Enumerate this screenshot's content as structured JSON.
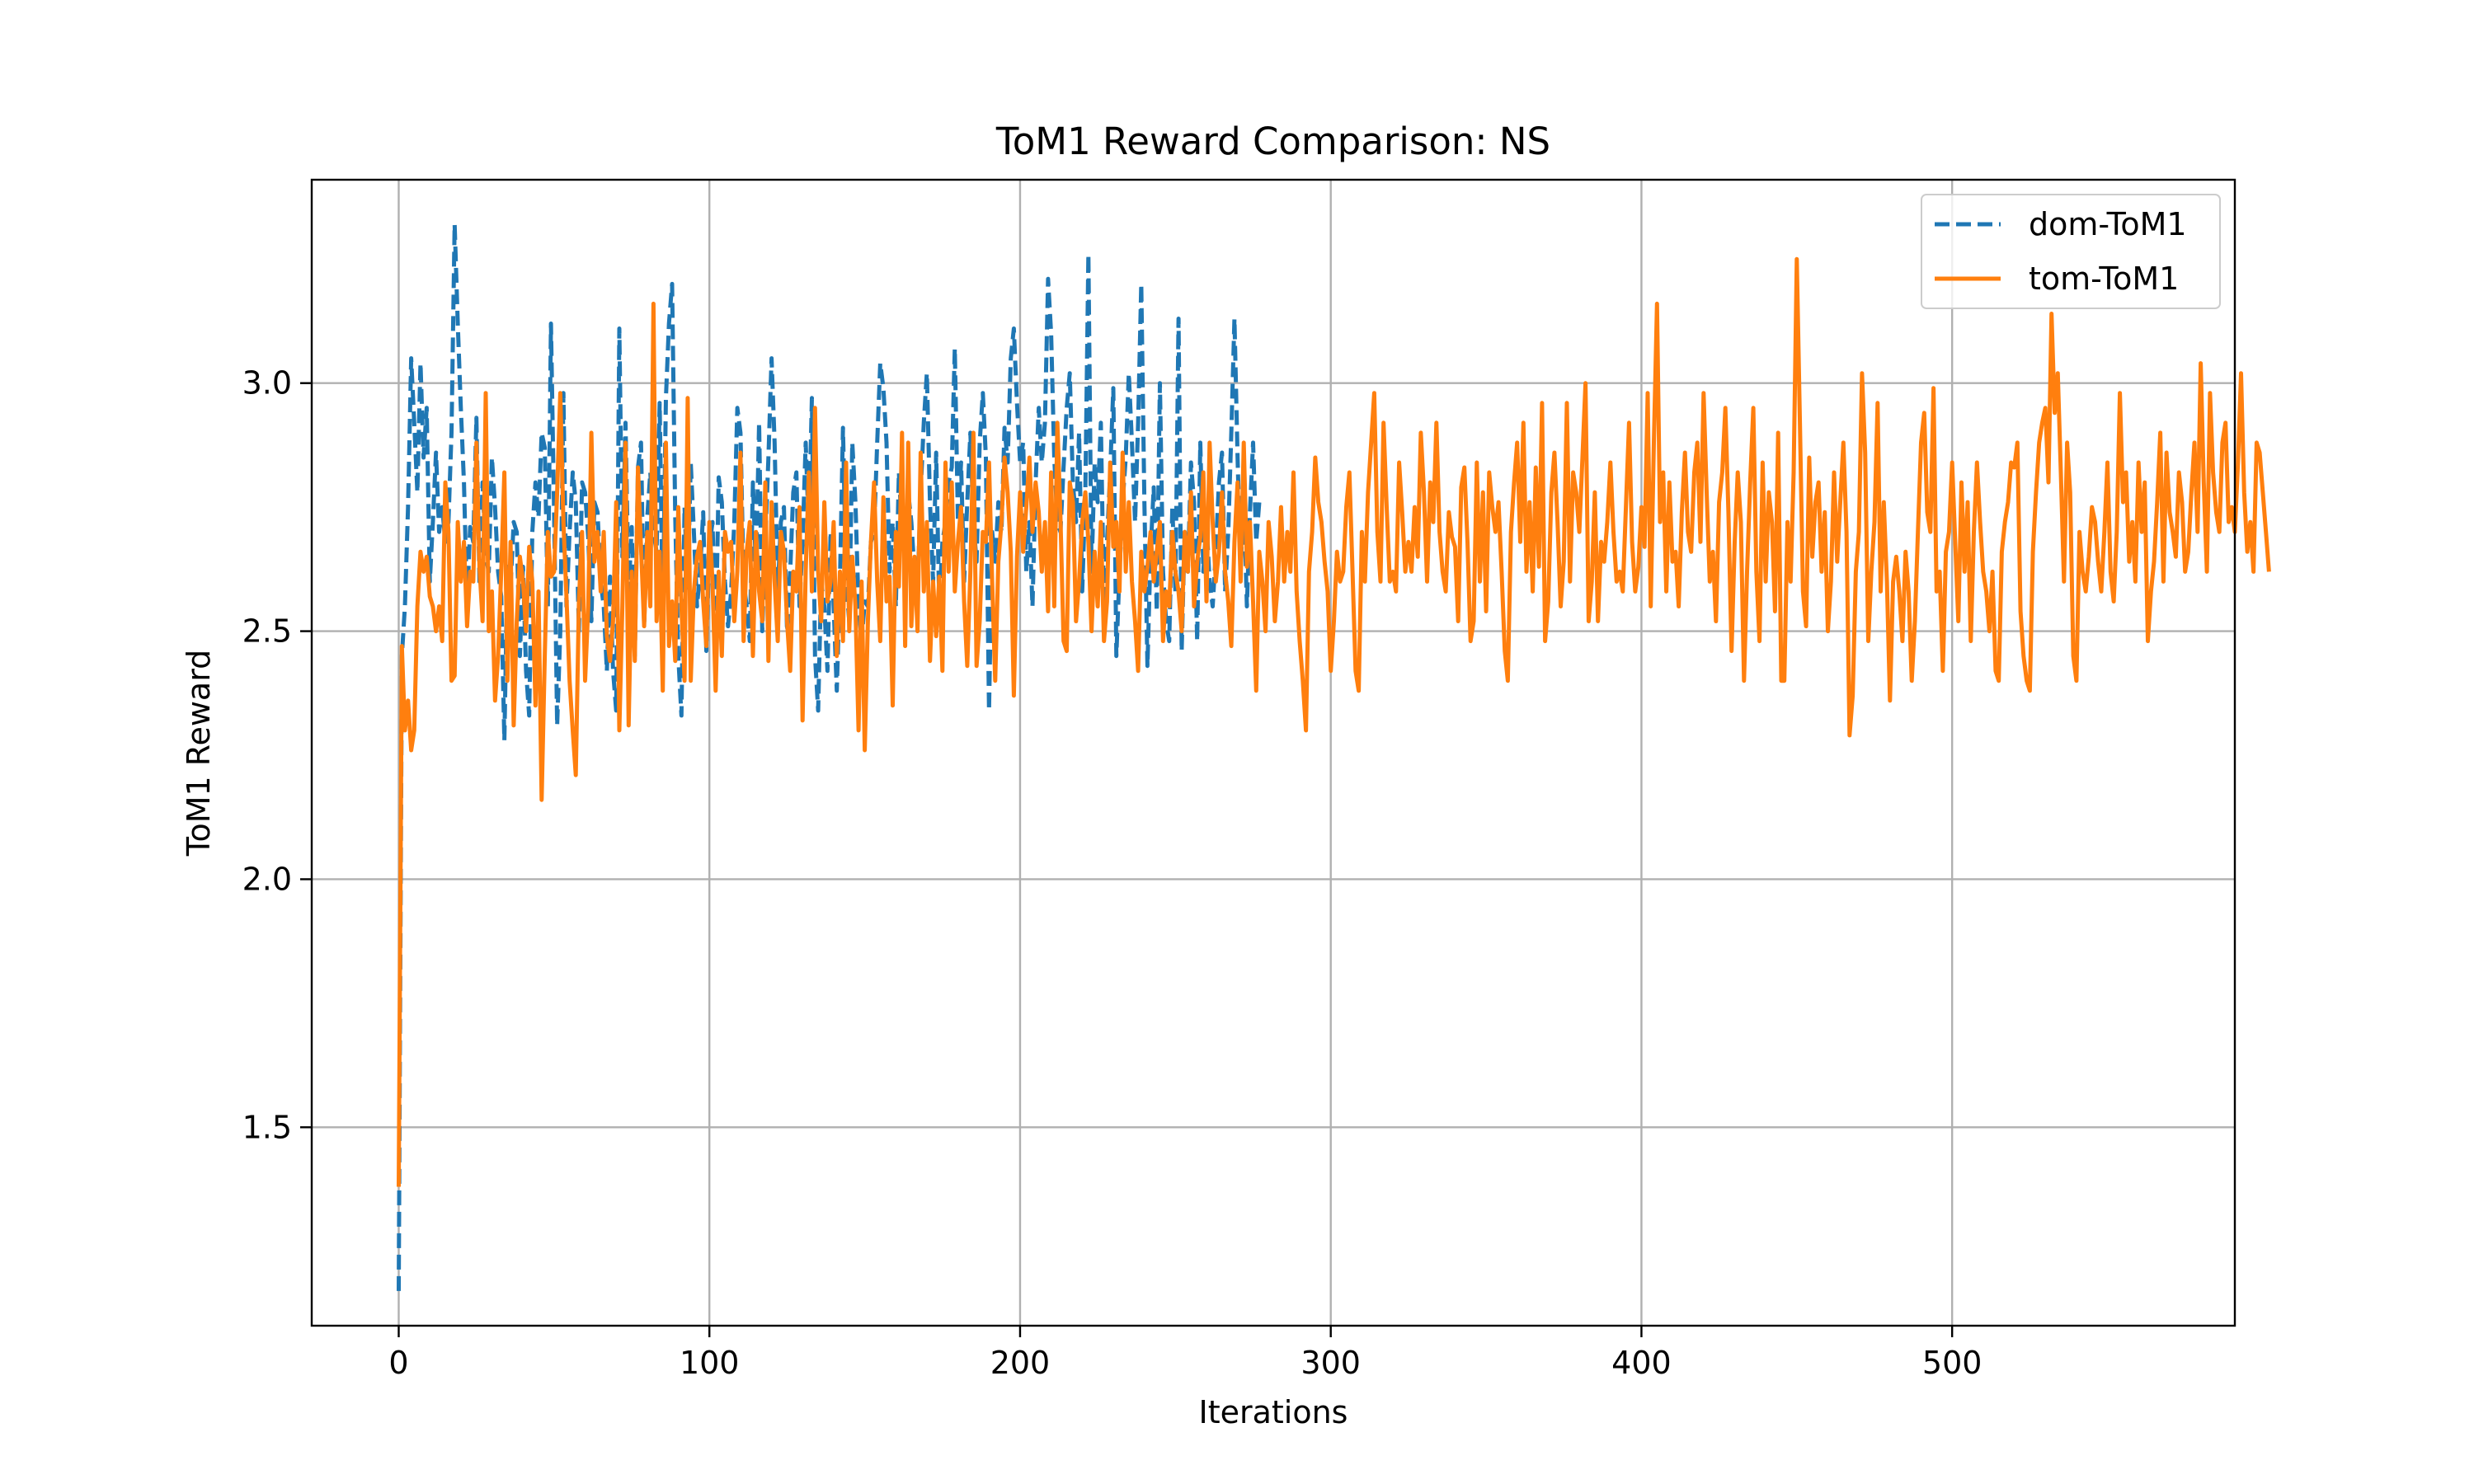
{
  "chart_data": {
    "type": "line",
    "title": "ToM1 Reward Comparison: NS",
    "xlabel": "Iterations",
    "ylabel": "ToM1 Reward",
    "xlim": [
      -28,
      591
    ],
    "ylim": [
      1.1,
      3.41
    ],
    "xticks": [
      0,
      100,
      200,
      300,
      400,
      500
    ],
    "yticks": [
      1.5,
      2.0,
      2.5,
      3.0
    ],
    "grid": true,
    "legend": "top-right",
    "series": [
      {
        "name": "dom-ToM1",
        "color": "#1f77b4",
        "dash": "dashed",
        "values": [
          1.17,
          2.45,
          2.55,
          2.75,
          3.05,
          2.92,
          2.78,
          3.04,
          2.85,
          2.95,
          2.6,
          2.72,
          2.86,
          2.7,
          2.75,
          2.68,
          2.72,
          2.9,
          3.32,
          3.12,
          2.95,
          2.8,
          2.55,
          2.71,
          2.68,
          2.93,
          2.6,
          2.8,
          2.65,
          2.62,
          2.85,
          2.75,
          2.62,
          2.57,
          2.28,
          2.63,
          2.59,
          2.72,
          2.7,
          2.45,
          2.63,
          2.42,
          2.33,
          2.7,
          2.8,
          2.73,
          2.9,
          2.87,
          2.55,
          3.12,
          2.74,
          2.31,
          2.5,
          2.98,
          2.55,
          2.7,
          2.82,
          2.76,
          2.5,
          2.8,
          2.78,
          2.69,
          2.52,
          2.76,
          2.74,
          2.6,
          2.55,
          2.42,
          2.61,
          2.42,
          2.34,
          3.11,
          2.65,
          2.92,
          2.58,
          2.71,
          2.45,
          2.83,
          2.88,
          2.51,
          2.73,
          2.82,
          2.7,
          2.66,
          2.96,
          2.53,
          2.97,
          3.12,
          3.2,
          2.73,
          2.45,
          2.33,
          2.75,
          2.58,
          2.84,
          2.7,
          2.55,
          2.62,
          2.74,
          2.46,
          2.67,
          2.72,
          2.47,
          2.81,
          2.76,
          2.6,
          2.51,
          2.58,
          2.72,
          2.95,
          2.9,
          2.6,
          2.55,
          2.48,
          2.8,
          2.62,
          2.92,
          2.5,
          2.68,
          2.85,
          3.05,
          2.88,
          2.58,
          2.72,
          2.75,
          2.5,
          2.62,
          2.78,
          2.82,
          2.55,
          2.68,
          2.88,
          2.7,
          2.97,
          2.45,
          2.34,
          2.6,
          2.55,
          2.42,
          2.7,
          2.55,
          2.38,
          2.6,
          2.91,
          2.6,
          2.52,
          2.88,
          2.76,
          2.55,
          2.48,
          2.56,
          2.55,
          2.68,
          2.7,
          2.88,
          3.04,
          2.99,
          2.88,
          2.62,
          2.72,
          2.55,
          2.82,
          2.7,
          2.65,
          2.78,
          2.72,
          2.62,
          2.58,
          2.78,
          2.92,
          3.02,
          2.76,
          2.6,
          2.86,
          2.55,
          2.68,
          2.72,
          2.8,
          2.83,
          3.07,
          2.72,
          2.84,
          2.6,
          2.76,
          2.9,
          2.72,
          2.64,
          2.88,
          2.98,
          2.85,
          2.34,
          2.7,
          2.64,
          2.76,
          2.7,
          2.91,
          2.84,
          3.05,
          3.11,
          2.96,
          2.84,
          2.88,
          2.62,
          2.72,
          2.55,
          2.8,
          2.95,
          2.84,
          2.92,
          3.21,
          3.1,
          2.85,
          2.72,
          2.7,
          2.83,
          2.95,
          3.02,
          2.8,
          2.72,
          2.9,
          2.58,
          2.78,
          3.26,
          2.62,
          2.84,
          2.76,
          2.92,
          2.55,
          2.68,
          2.82,
          2.99,
          2.45,
          2.62,
          2.76,
          2.85,
          3.02,
          2.88,
          2.72,
          2.92,
          3.2,
          2.76,
          2.43,
          2.66,
          2.79,
          2.54,
          3.0,
          2.62,
          2.52,
          2.48,
          2.75,
          2.58,
          3.13,
          2.46,
          2.7,
          2.62,
          2.84,
          2.76,
          2.48,
          2.88,
          2.62,
          2.72,
          2.6,
          2.55,
          2.66,
          2.8,
          2.86,
          2.58,
          2.7,
          2.9,
          3.13,
          2.85,
          2.62,
          2.78,
          2.55,
          2.74,
          2.88,
          2.68,
          2.76
        ]
      },
      {
        "name": "tom-ToM1",
        "color": "#ff7f0e",
        "dash": "solid",
        "values": [
          1.38,
          2.47,
          2.3,
          2.36,
          2.26,
          2.3,
          2.55,
          2.66,
          2.62,
          2.65,
          2.57,
          2.55,
          2.5,
          2.55,
          2.48,
          2.8,
          2.7,
          2.4,
          2.41,
          2.72,
          2.6,
          2.68,
          2.51,
          2.62,
          2.6,
          2.88,
          2.63,
          2.52,
          2.98,
          2.5,
          2.58,
          2.36,
          2.45,
          2.62,
          2.82,
          2.4,
          2.68,
          2.31,
          2.52,
          2.65,
          2.6,
          2.5,
          2.67,
          2.6,
          2.35,
          2.58,
          2.16,
          2.45,
          2.7,
          2.61,
          2.62,
          2.78,
          2.98,
          2.72,
          2.57,
          2.4,
          2.3,
          2.21,
          2.56,
          2.7,
          2.4,
          2.55,
          2.9,
          2.64,
          2.7,
          2.58,
          2.7,
          2.49,
          2.44,
          2.52,
          2.76,
          2.3,
          2.55,
          2.88,
          2.31,
          2.62,
          2.44,
          2.83,
          2.67,
          2.51,
          2.7,
          2.55,
          3.16,
          2.52,
          2.66,
          2.38,
          2.88,
          2.47,
          2.56,
          2.44,
          2.75,
          2.55,
          2.4,
          2.97,
          2.4,
          2.58,
          2.65,
          2.68,
          2.56,
          2.47,
          2.72,
          2.6,
          2.38,
          2.62,
          2.45,
          2.7,
          2.66,
          2.68,
          2.52,
          2.62,
          2.86,
          2.48,
          2.66,
          2.72,
          2.45,
          2.7,
          2.58,
          2.52,
          2.8,
          2.44,
          2.76,
          2.6,
          2.48,
          2.7,
          2.66,
          2.52,
          2.42,
          2.62,
          2.58,
          2.75,
          2.32,
          2.62,
          2.82,
          2.58,
          2.95,
          2.62,
          2.52,
          2.76,
          2.56,
          2.6,
          2.72,
          2.45,
          2.62,
          2.48,
          2.84,
          2.5,
          2.65,
          2.55,
          2.3,
          2.6,
          2.26,
          2.52,
          2.68,
          2.8,
          2.6,
          2.48,
          2.77,
          2.56,
          2.61,
          2.35,
          2.7,
          2.59,
          2.9,
          2.47,
          2.88,
          2.51,
          2.65,
          2.5,
          2.86,
          2.58,
          2.72,
          2.44,
          2.6,
          2.49,
          2.61,
          2.42,
          2.84,
          2.62,
          2.8,
          2.58,
          2.68,
          2.75,
          2.56,
          2.43,
          2.62,
          2.9,
          2.43,
          2.52,
          2.7,
          2.68,
          2.84,
          2.6,
          2.4,
          2.64,
          2.72,
          2.85,
          2.78,
          2.66,
          2.37,
          2.65,
          2.78,
          2.66,
          2.75,
          2.85,
          2.7,
          2.8,
          2.74,
          2.62,
          2.72,
          2.54,
          2.82,
          2.55,
          2.92,
          2.73,
          2.48,
          2.46,
          2.8,
          2.76,
          2.52,
          2.6,
          2.72,
          2.78,
          2.68,
          2.5,
          2.66,
          2.55,
          2.72,
          2.48,
          2.56,
          2.84,
          2.67,
          2.72,
          2.58,
          2.86,
          2.62,
          2.76,
          2.6,
          2.52,
          2.42,
          2.66,
          2.58,
          2.63,
          2.7,
          2.6,
          2.66,
          2.72,
          2.48,
          2.58,
          2.55,
          2.7,
          2.62,
          2.58,
          2.5,
          2.7,
          2.62,
          2.78,
          2.55,
          2.64,
          2.69,
          2.82,
          2.56,
          2.88,
          2.72,
          2.6,
          2.66,
          2.78,
          2.62,
          2.56,
          2.47,
          2.68,
          2.8,
          2.6,
          2.88,
          2.63,
          2.72,
          2.56,
          2.38,
          2.66,
          2.6,
          2.5,
          2.72,
          2.65,
          2.52,
          2.6,
          2.75,
          2.6,
          2.7,
          2.62,
          2.82,
          2.58,
          2.48,
          2.4,
          2.3,
          2.62,
          2.7,
          2.85,
          2.76,
          2.72,
          2.64,
          2.58,
          2.42,
          2.52,
          2.66,
          2.6,
          2.62,
          2.75,
          2.82,
          2.62,
          2.42,
          2.38,
          2.7,
          2.6,
          2.78,
          2.88,
          2.98,
          2.7,
          2.6,
          2.92,
          2.75,
          2.6,
          2.62,
          2.58,
          2.84,
          2.74,
          2.62,
          2.68,
          2.62,
          2.75,
          2.65,
          2.9,
          2.78,
          2.6,
          2.8,
          2.72,
          2.92,
          2.7,
          2.62,
          2.58,
          2.74,
          2.69,
          2.67,
          2.52,
          2.79,
          2.83,
          2.68,
          2.48,
          2.52,
          2.84,
          2.6,
          2.78,
          2.54,
          2.82,
          2.75,
          2.7,
          2.76,
          2.62,
          2.46,
          2.4,
          2.7,
          2.8,
          2.88,
          2.68,
          2.92,
          2.62,
          2.76,
          2.58,
          2.83,
          2.63,
          2.96,
          2.48,
          2.56,
          2.78,
          2.86,
          2.72,
          2.55,
          2.64,
          2.96,
          2.6,
          2.82,
          2.78,
          2.7,
          2.85,
          3.0,
          2.52,
          2.6,
          2.78,
          2.52,
          2.68,
          2.64,
          2.72,
          2.84,
          2.7,
          2.6,
          2.62,
          2.58,
          2.75,
          2.92,
          2.68,
          2.58,
          2.63,
          2.75,
          2.67,
          2.98,
          2.55,
          2.88,
          3.16,
          2.72,
          2.82,
          2.58,
          2.8,
          2.64,
          2.66,
          2.55,
          2.74,
          2.86,
          2.7,
          2.66,
          2.82,
          2.88,
          2.68,
          2.98,
          2.78,
          2.6,
          2.66,
          2.52,
          2.76,
          2.82,
          2.95,
          2.74,
          2.46,
          2.68,
          2.82,
          2.72,
          2.4,
          2.62,
          2.8,
          2.95,
          2.62,
          2.48,
          2.84,
          2.6,
          2.78,
          2.72,
          2.54,
          2.9,
          2.4,
          2.4,
          2.72,
          2.6,
          2.82,
          3.25,
          2.92,
          2.58,
          2.51,
          2.85,
          2.65,
          2.76,
          2.8,
          2.62,
          2.74,
          2.5,
          2.6,
          2.82,
          2.64,
          2.76,
          2.88,
          2.7,
          2.29,
          2.37,
          2.62,
          2.7,
          3.02,
          2.86,
          2.48,
          2.62,
          2.72,
          2.96,
          2.58,
          2.76,
          2.6,
          2.36,
          2.6,
          2.65,
          2.58,
          2.48,
          2.66,
          2.58,
          2.4,
          2.52,
          2.7,
          2.88,
          2.94,
          2.74,
          2.7,
          2.99,
          2.58,
          2.62,
          2.42,
          2.66,
          2.7,
          2.84,
          2.68,
          2.52,
          2.8,
          2.62,
          2.76,
          2.48,
          2.7,
          2.84,
          2.72,
          2.62,
          2.58,
          2.5,
          2.62,
          2.42,
          2.4,
          2.66,
          2.72,
          2.76,
          2.84,
          2.83,
          2.88,
          2.54,
          2.45,
          2.4,
          2.38,
          2.66,
          2.78,
          2.88,
          2.92,
          2.95,
          2.8,
          3.14,
          2.94,
          3.02,
          2.82,
          2.6,
          2.88,
          2.78,
          2.45,
          2.4,
          2.7,
          2.62,
          2.58,
          2.65,
          2.75,
          2.72,
          2.64,
          2.58,
          2.7,
          2.84,
          2.62,
          2.56,
          2.7,
          2.98,
          2.76,
          2.82,
          2.64,
          2.72,
          2.6,
          2.84,
          2.7,
          2.8,
          2.48,
          2.58,
          2.64,
          2.76,
          2.9,
          2.6,
          2.86,
          2.74,
          2.7,
          2.65,
          2.82,
          2.76,
          2.62,
          2.66,
          2.78,
          2.88,
          2.7,
          3.04,
          2.8,
          2.62,
          2.98,
          2.82,
          2.74,
          2.7,
          2.88,
          2.92,
          2.72,
          2.75,
          2.7,
          2.84,
          3.02,
          2.78,
          2.66,
          2.72,
          2.62,
          2.88,
          2.86,
          2.78,
          2.7,
          2.62
        ]
      }
    ]
  }
}
